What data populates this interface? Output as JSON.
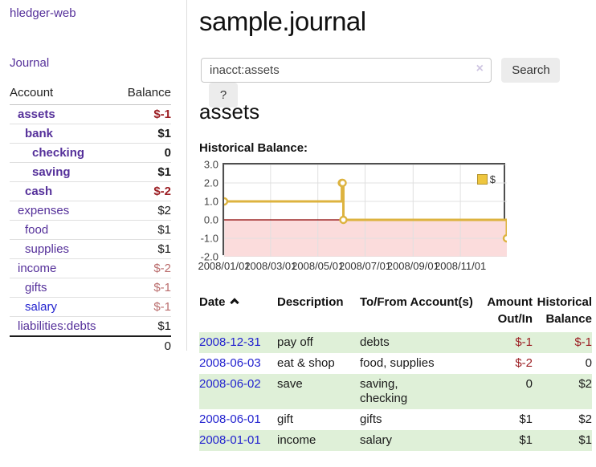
{
  "sidebar": {
    "app_title": "hledger-web",
    "journal_label": "Journal",
    "accounts_header": {
      "account": "Account",
      "balance": "Balance"
    },
    "accounts": [
      {
        "name": "assets",
        "depth": 0,
        "bold": true,
        "balance": "$-1"
      },
      {
        "name": "bank",
        "depth": 1,
        "bold": true,
        "balance": "$1"
      },
      {
        "name": "checking",
        "depth": 2,
        "bold": true,
        "balance": "0"
      },
      {
        "name": "saving",
        "depth": 2,
        "bold": true,
        "balance": "$1"
      },
      {
        "name": "cash",
        "depth": 1,
        "bold": true,
        "balance": "$-2"
      },
      {
        "name": "expenses",
        "depth": 0,
        "bold": false,
        "balance": "$2"
      },
      {
        "name": "food",
        "depth": 1,
        "bold": false,
        "balance": "$1"
      },
      {
        "name": "supplies",
        "depth": 1,
        "bold": false,
        "balance": "$1"
      },
      {
        "name": "income",
        "depth": 0,
        "bold": false,
        "balance": "$-2"
      },
      {
        "name": "gifts",
        "depth": 1,
        "bold": false,
        "balance": "$-1"
      },
      {
        "name": "salary",
        "depth": 1,
        "bold": false,
        "balance": "$-1",
        "name_color": "blue"
      },
      {
        "name": "liabilities:debts",
        "depth": 0,
        "bold": false,
        "balance": "$1"
      }
    ],
    "total": "0"
  },
  "main": {
    "title": "sample.journal",
    "search": {
      "value": "inacct:assets",
      "clear_glyph": "×",
      "button_label": "Search",
      "help_label": "?"
    },
    "account_heading": "assets",
    "chart_label": "Historical Balance:"
  },
  "chart_data": {
    "type": "line",
    "step": true,
    "title": "Historical Balance:",
    "series": [
      {
        "name": "$",
        "points": [
          [
            "2008-01-01",
            1
          ],
          [
            "2008-06-01",
            2
          ],
          [
            "2008-06-02",
            2
          ],
          [
            "2008-06-03",
            0
          ],
          [
            "2008-12-31",
            -1
          ]
        ]
      }
    ],
    "x_range": [
      "2008-01-01",
      "2008-12-31"
    ],
    "ylim": [
      -2,
      3
    ],
    "y_ticks": [
      3.0,
      2.0,
      1.0,
      0.0,
      -1.0,
      -2.0
    ],
    "x_ticks": [
      "2008/01/01",
      "2008/03/01",
      "2008/05/01",
      "2008/07/01",
      "2008/09/01",
      "2008/11/01"
    ],
    "legend_position": "top-right",
    "grid": true,
    "colors": {
      "line": "#ddb33f",
      "marker_fill": "#ffffff",
      "negative_region": "#fbdcdc",
      "zero_line": "#8b0000",
      "gridline": "#e0e0e0",
      "legend_swatch": "#eec63f"
    }
  },
  "register": {
    "headers": {
      "date": "Date",
      "description": "Description",
      "accounts": "To/From Account(s)",
      "amount": "Amount Out/In",
      "balance": "Historical Balance"
    },
    "rows": [
      {
        "date": "2008-12-31",
        "description": "pay off",
        "accounts": "debts",
        "amount": "$-1",
        "balance": "$-1"
      },
      {
        "date": "2008-06-03",
        "description": "eat & shop",
        "accounts": "food, supplies",
        "amount": "$-2",
        "balance": "0"
      },
      {
        "date": "2008-06-02",
        "description": "save",
        "accounts": "saving, checking",
        "amount": "0",
        "balance": "$2"
      },
      {
        "date": "2008-06-01",
        "description": "gift",
        "accounts": "gifts",
        "amount": "$1",
        "balance": "$2"
      },
      {
        "date": "2008-01-01",
        "description": "income",
        "accounts": "salary",
        "amount": "$1",
        "balance": "$1"
      }
    ]
  }
}
